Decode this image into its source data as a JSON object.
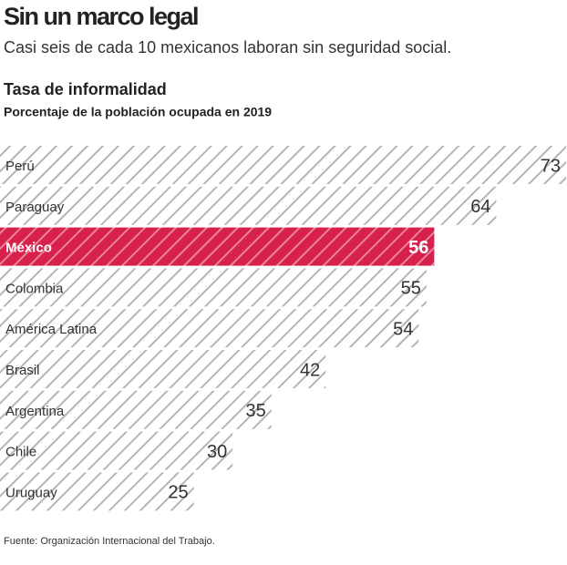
{
  "chart_data": {
    "type": "bar",
    "orientation": "horizontal",
    "title": "Sin un marco legal",
    "subtitle": "Casi seis de cada 10 mexicanos laboran sin seguridad social.",
    "chart_title": "Tasa de informalidad",
    "chart_subtitle": "Porcentaje de la población ocupada en 2019",
    "categories": [
      "Perú",
      "Paraguay",
      "México",
      "Colombia",
      "América Latina",
      "Brasil",
      "Argentina",
      "Chile",
      "Uruguay"
    ],
    "values": [
      73,
      64,
      56,
      55,
      54,
      42,
      35,
      30,
      25
    ],
    "color": "#b5b5b5",
    "colors": [
      "#b5b5b5",
      "#b5b5b5",
      "#d8204c",
      "#b5b5b5",
      "#b5b5b5",
      "#b5b5b5",
      "#b5b5b5",
      "#b5b5b5",
      "#b5b5b5"
    ],
    "source": "Fuente: Organización Internacional del Trabajo."
  }
}
